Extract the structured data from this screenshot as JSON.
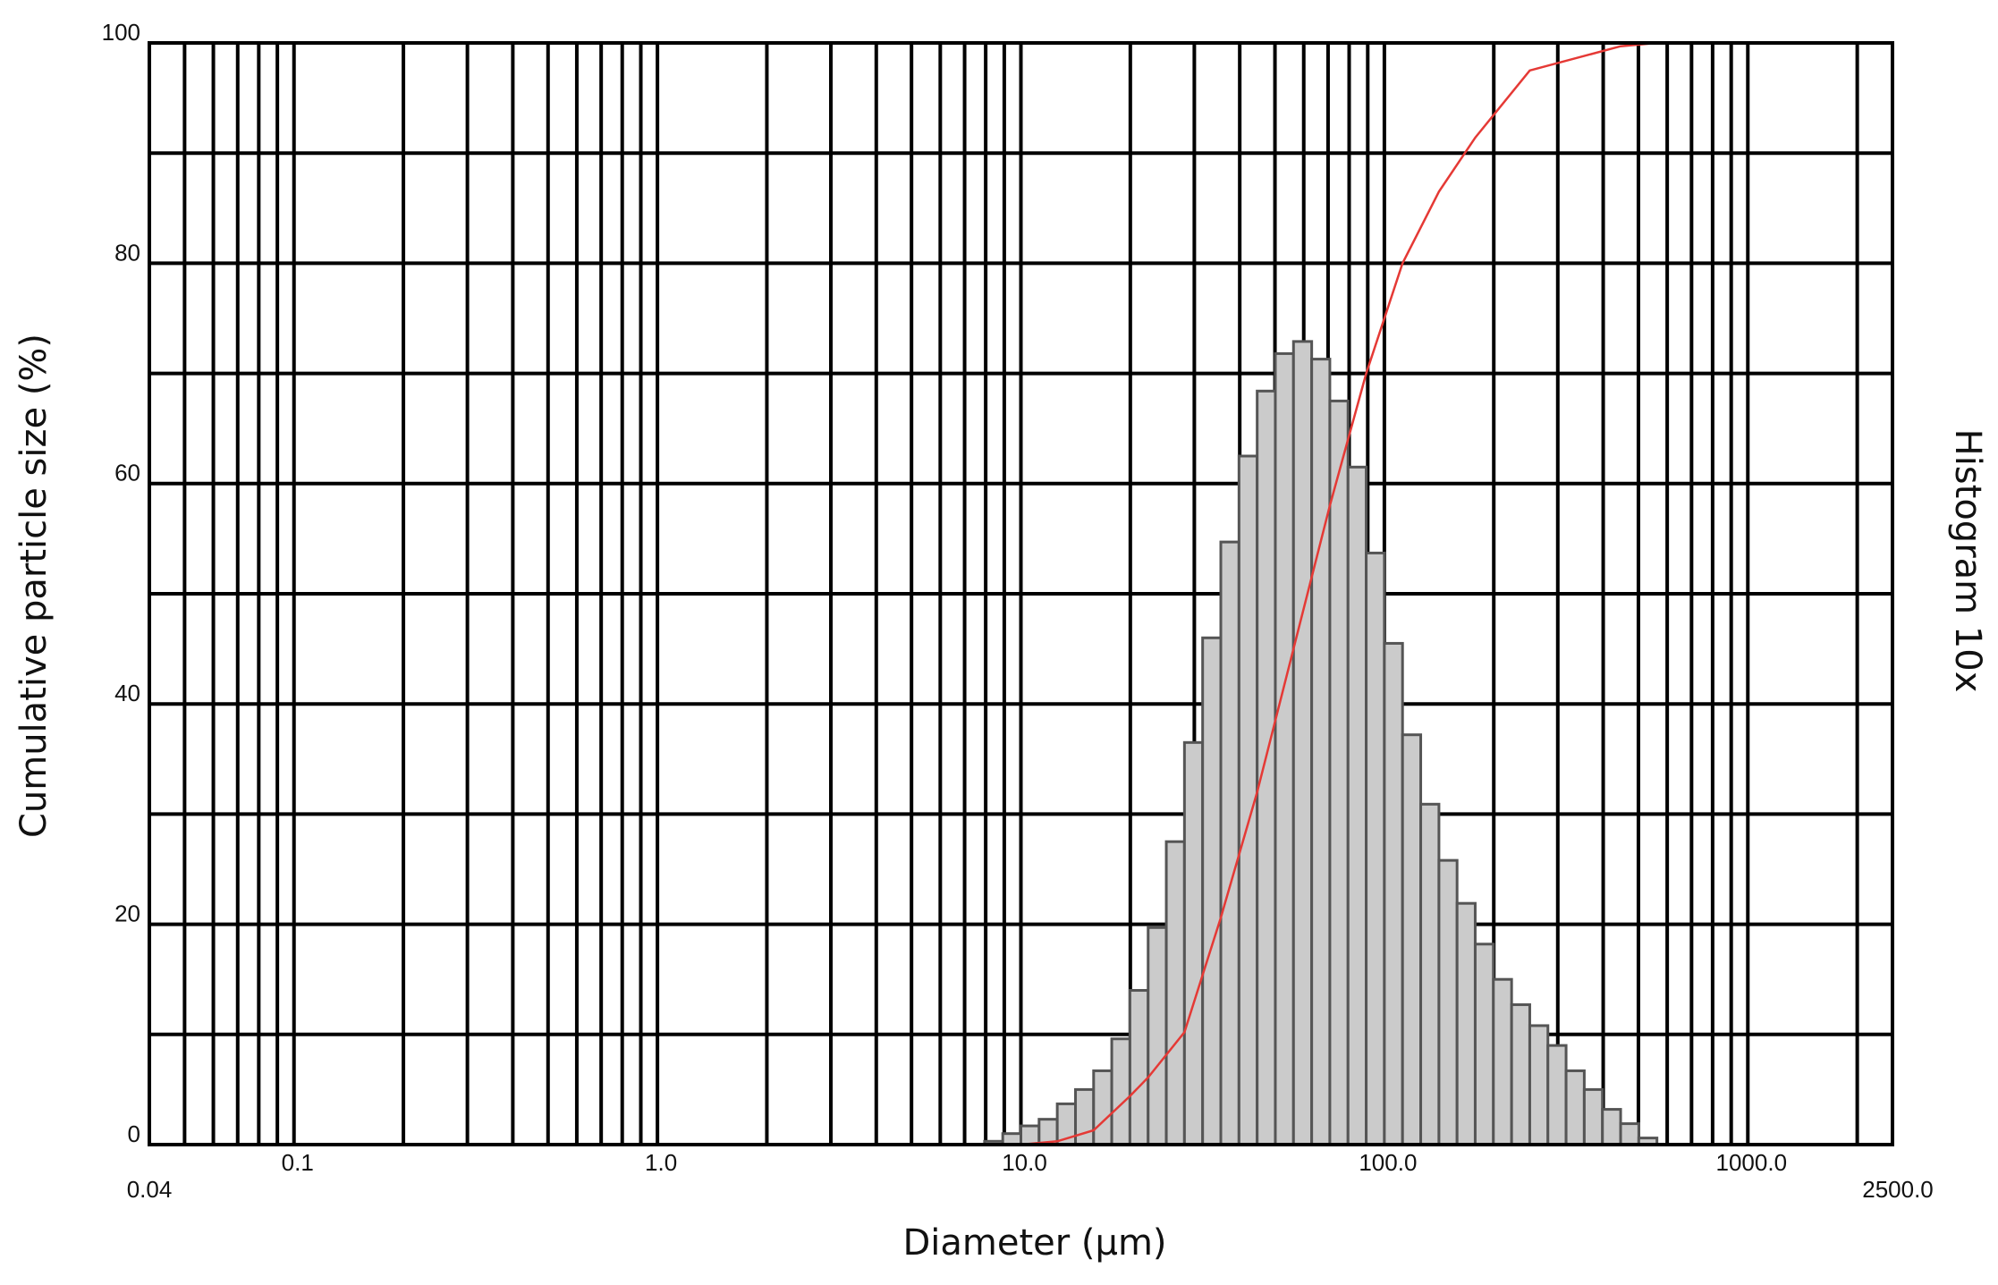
{
  "chart_data": {
    "type": "histogram",
    "x_label": "Diameter (μm)",
    "y_label": "Cumulative particle size (%)",
    "right_label": "Histogram 10x",
    "x_log": true,
    "grid": true,
    "bins": [
      7.943,
      8.913,
      10,
      11.22,
      12.59,
      14.13,
      15.85,
      17.78,
      19.95,
      22.39,
      25.12,
      28.18,
      31.62,
      35.48,
      39.81,
      44.67,
      50.12,
      56.23,
      63.1,
      70.79,
      79.43,
      89.13,
      100,
      112.2,
      125.9,
      141.3,
      158.5,
      177.8,
      199.5,
      223.9,
      251.2,
      281.8,
      316.2,
      354.8,
      398.1,
      446.7,
      501.2,
      562.3
    ],
    "values": [
      0.3,
      1.0,
      1.7,
      2.3,
      3.7,
      5.0,
      6.7,
      9.6,
      14.0,
      19.7,
      27.5,
      36.5,
      46,
      54.7,
      62.5,
      68.4,
      71.8,
      72.9,
      71.3,
      67.5,
      61.5,
      53.7,
      45.5,
      37.2,
      30.9,
      25.8,
      21.9,
      18.2,
      15.0,
      12.7,
      10.8,
      9.0,
      6.7,
      5.0,
      3.2,
      1.9,
      0.6
    ],
    "color": "#cbcbcb",
    "edge_color": "#555555",
    "overlay": {
      "type": "line",
      "color": "#e53935",
      "x": [
        0.04,
        10,
        12.59,
        15.85,
        19.95,
        22.39,
        28.18,
        35.48,
        44.67,
        56.23,
        70.79,
        89.13,
        112.2,
        141.3,
        177.8,
        251.2,
        446.7,
        562.3,
        2500
      ],
      "values": [
        0,
        0,
        0.3,
        1.3,
        4.4,
        6.1,
        10.2,
        20.6,
        32,
        45,
        58,
        70,
        80,
        86.5,
        91.4,
        97.5,
        99.7,
        100,
        100
      ]
    },
    "xlim": [
      0.04,
      2500
    ],
    "xticks": [
      0.04,
      0.1,
      {
        "value": 1,
        "label": "1.0"
      },
      {
        "value": 10,
        "label": "10.0"
      },
      {
        "value": 100,
        "label": "100.0"
      },
      {
        "value": 1000,
        "label": "1000.0"
      },
      {
        "value": 2500,
        "label": "2500.0"
      }
    ],
    "x_minor_ticks": [
      0.05,
      0.06,
      0.07,
      0.08,
      0.09,
      0.2,
      0.3,
      0.4,
      0.5,
      0.6,
      0.7,
      0.8,
      0.9,
      2,
      3,
      4,
      5,
      6,
      7,
      8,
      9,
      20,
      30,
      40,
      50,
      60,
      70,
      80,
      90,
      200,
      300,
      400,
      500,
      600,
      700,
      800,
      900,
      2000
    ],
    "ylim": [
      0,
      100
    ],
    "yticks": [
      0,
      20,
      40,
      60,
      80,
      100
    ],
    "y_minor_ticks": [
      10,
      30,
      50,
      70,
      90
    ]
  }
}
